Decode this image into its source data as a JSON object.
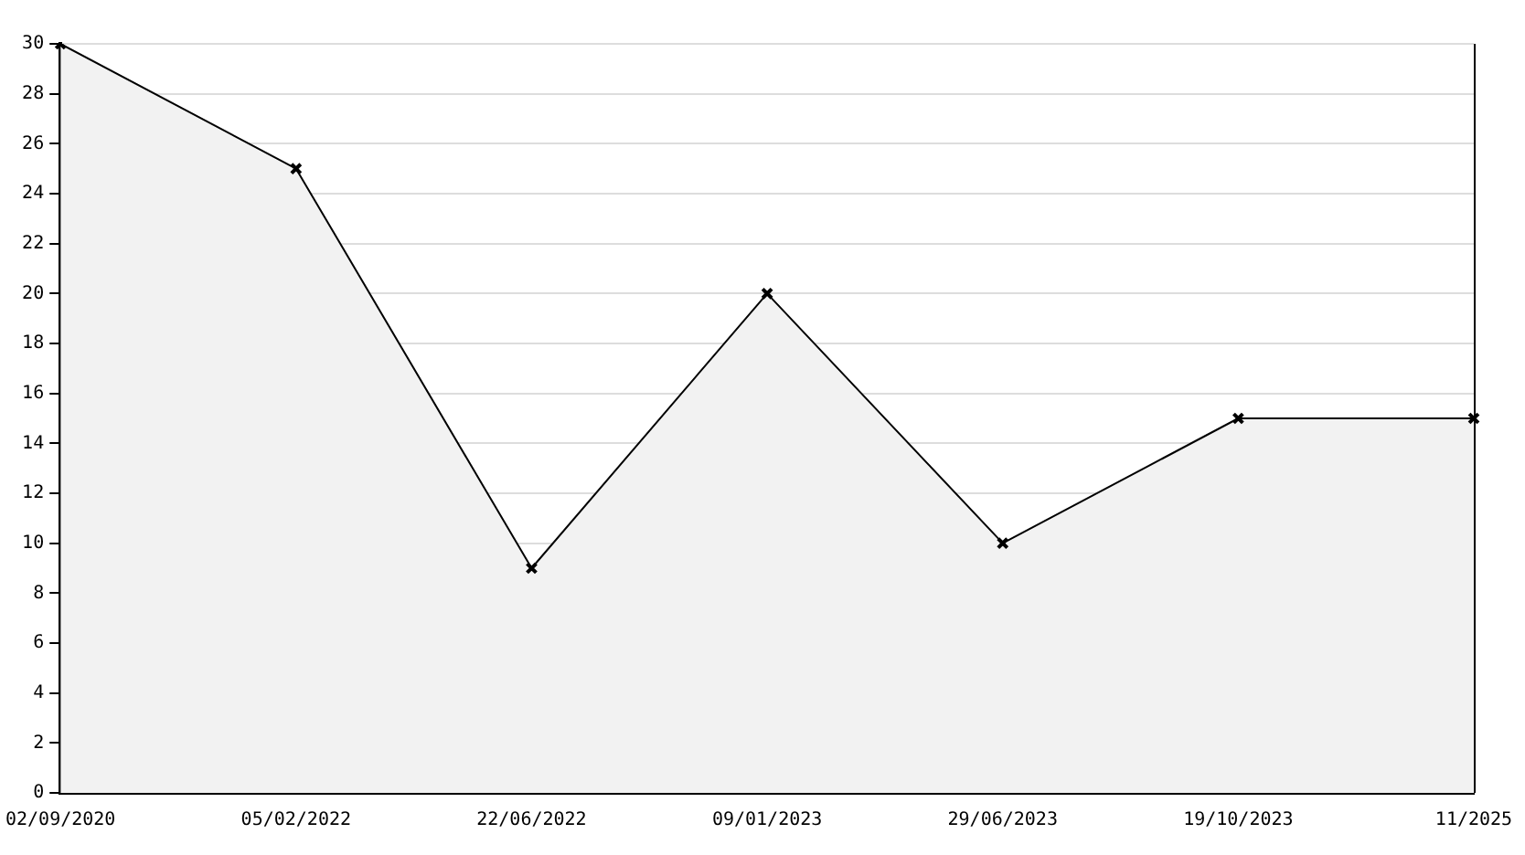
{
  "chart_data": {
    "type": "area",
    "categories": [
      "02/09/2020",
      "05/02/2022",
      "22/06/2022",
      "09/01/2023",
      "29/06/2023",
      "19/10/2023",
      "11/2025"
    ],
    "series": [
      {
        "color": "#000000",
        "values": [
          30,
          25,
          9,
          20,
          10,
          15,
          15
        ]
      }
    ],
    "ylim": [
      0,
      30
    ],
    "yticks": [
      0,
      2,
      4,
      6,
      8,
      10,
      12,
      14,
      16,
      18,
      20,
      22,
      24,
      26,
      28,
      30
    ],
    "grid": "y",
    "legend": false,
    "marker": "cross",
    "line_style": "solid"
  }
}
